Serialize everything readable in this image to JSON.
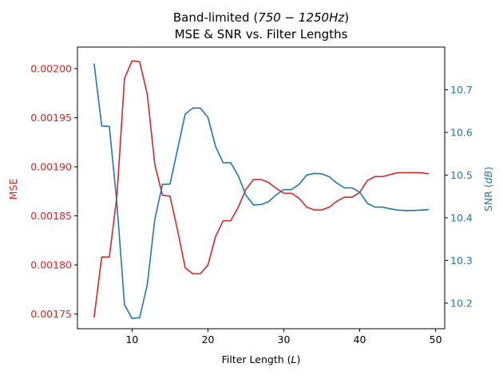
{
  "chart_data": {
    "type": "line",
    "title_line1_prefix": "Band-limited (",
    "title_line1_math": "750 − 1250Hz",
    "title_line1_suffix": ")",
    "title_line2": "MSE & SNR vs. Filter Lengths",
    "xlabel_prefix": "Filter Length (",
    "xlabel_math": "L",
    "xlabel_suffix": ")",
    "xlim": [
      2.8,
      51.2
    ],
    "xticks": [
      10,
      20,
      30,
      40,
      50
    ],
    "colors": {
      "mse": "#d62728",
      "snr": "#1f77b4",
      "axis": "#000000"
    },
    "x": [
      5,
      6,
      7,
      8,
      9,
      10,
      11,
      12,
      13,
      14,
      15,
      16,
      17,
      18,
      19,
      20,
      21,
      22,
      23,
      24,
      25,
      26,
      27,
      28,
      29,
      30,
      31,
      32,
      33,
      34,
      35,
      36,
      37,
      38,
      39,
      40,
      41,
      42,
      43,
      44,
      45,
      46,
      47,
      48,
      49
    ],
    "series": [
      {
        "name": "MSE",
        "axis": "left",
        "ylabel": "MSE",
        "ylim": [
          0.001735,
          0.002022
        ],
        "yticks": [
          0.00175,
          0.0018,
          0.00185,
          0.0019,
          0.00195,
          0.002
        ],
        "tick_labels": [
          "0.00175",
          "0.00180",
          "0.00185",
          "0.00190",
          "0.00195",
          "0.00200"
        ],
        "values": [
          0.001747,
          0.001808,
          0.001808,
          0.00187,
          0.00199,
          0.002008,
          0.002007,
          0.001974,
          0.001902,
          0.001871,
          0.00187,
          0.001835,
          0.001797,
          0.001791,
          0.001791,
          0.0018,
          0.001829,
          0.001845,
          0.001845,
          0.001859,
          0.001877,
          0.001887,
          0.001887,
          0.001884,
          0.001878,
          0.001873,
          0.001873,
          0.001868,
          0.001859,
          0.001856,
          0.001856,
          0.001859,
          0.001865,
          0.001869,
          0.001869,
          0.001874,
          0.001886,
          0.00189,
          0.00189,
          0.001892,
          0.001894,
          0.001894,
          0.001894,
          0.001894,
          0.001893
        ]
      },
      {
        "name": "SNR",
        "axis": "right",
        "ylabel_prefix": "SNR (",
        "ylabel_math": "dB",
        "ylabel_suffix": ")",
        "ylim": [
          10.14,
          10.8
        ],
        "yticks": [
          10.2,
          10.3,
          10.4,
          10.5,
          10.6,
          10.7
        ],
        "tick_labels": [
          "10.2",
          "10.3",
          "10.4",
          "10.5",
          "10.6",
          "10.7"
        ],
        "values": [
          10.76,
          10.615,
          10.614,
          10.434,
          10.196,
          10.164,
          10.166,
          10.243,
          10.397,
          10.478,
          10.479,
          10.561,
          10.643,
          10.657,
          10.657,
          10.635,
          10.567,
          10.529,
          10.529,
          10.498,
          10.453,
          10.43,
          10.431,
          10.438,
          10.454,
          10.466,
          10.466,
          10.478,
          10.5,
          10.504,
          10.503,
          10.496,
          10.481,
          10.47,
          10.47,
          10.46,
          10.434,
          10.425,
          10.425,
          10.421,
          10.418,
          10.417,
          10.417,
          10.418,
          10.419
        ]
      }
    ]
  }
}
